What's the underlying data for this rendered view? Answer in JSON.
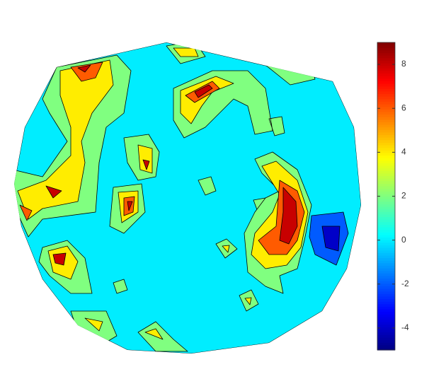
{
  "chart_data": {
    "type": "contour",
    "colormap": "jet",
    "levels": [
      -4,
      -2,
      0,
      2,
      4,
      6,
      8
    ],
    "colorbar": {
      "ylim": [
        -5,
        9
      ],
      "yticks": [
        -4,
        -2,
        0,
        2,
        4,
        6,
        8
      ]
    }
  }
}
